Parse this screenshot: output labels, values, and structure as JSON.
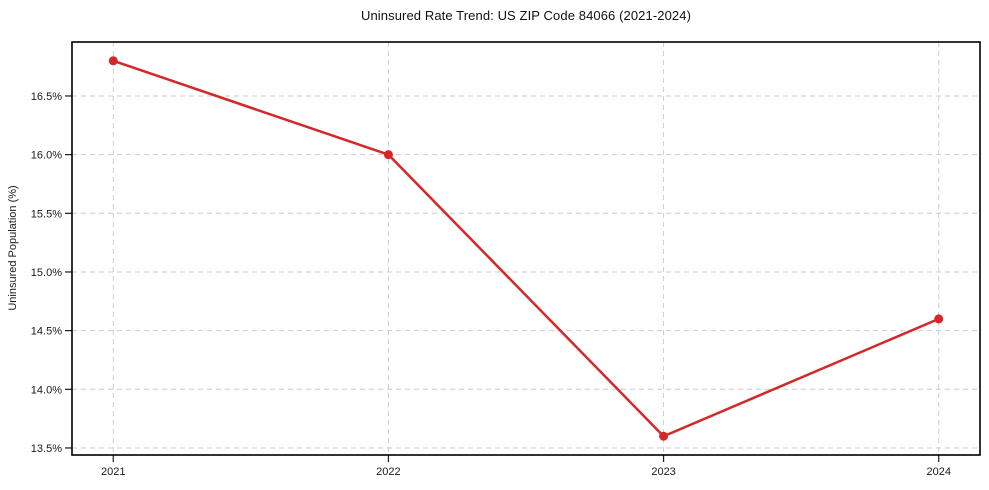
{
  "figure": {
    "background": "#ffffff"
  },
  "chart_data": {
    "type": "line",
    "title": "Uninsured Rate Trend: US ZIP Code 84066 (2021-2024)",
    "xlabel": "",
    "ylabel": "Uninsured Population (%)",
    "x": [
      2021,
      2022,
      2023,
      2024
    ],
    "x_tick_labels": [
      "2021",
      "2022",
      "2023",
      "2024"
    ],
    "series": [
      {
        "name": "Uninsured rate",
        "values": [
          16.8,
          16.0,
          13.6,
          14.6
        ],
        "color": "#d62728",
        "marker": "circle",
        "line_width": 2.5,
        "marker_radius": 4.5
      }
    ],
    "y_ticks": [
      13.5,
      14.0,
      14.5,
      15.0,
      15.5,
      16.0,
      16.5
    ],
    "y_tick_labels": [
      "13.5%",
      "14.0%",
      "14.5%",
      "15.0%",
      "15.5%",
      "16.0%",
      "16.5%"
    ],
    "xlim": [
      2020.85,
      2024.15
    ],
    "ylim": [
      13.44,
      16.96
    ],
    "grid": {
      "visible": true,
      "style": "dashed",
      "color": "#cccccc"
    },
    "legend": {
      "visible": false
    },
    "spine_color": "#000000",
    "tick_color": "#1a1a1a"
  }
}
